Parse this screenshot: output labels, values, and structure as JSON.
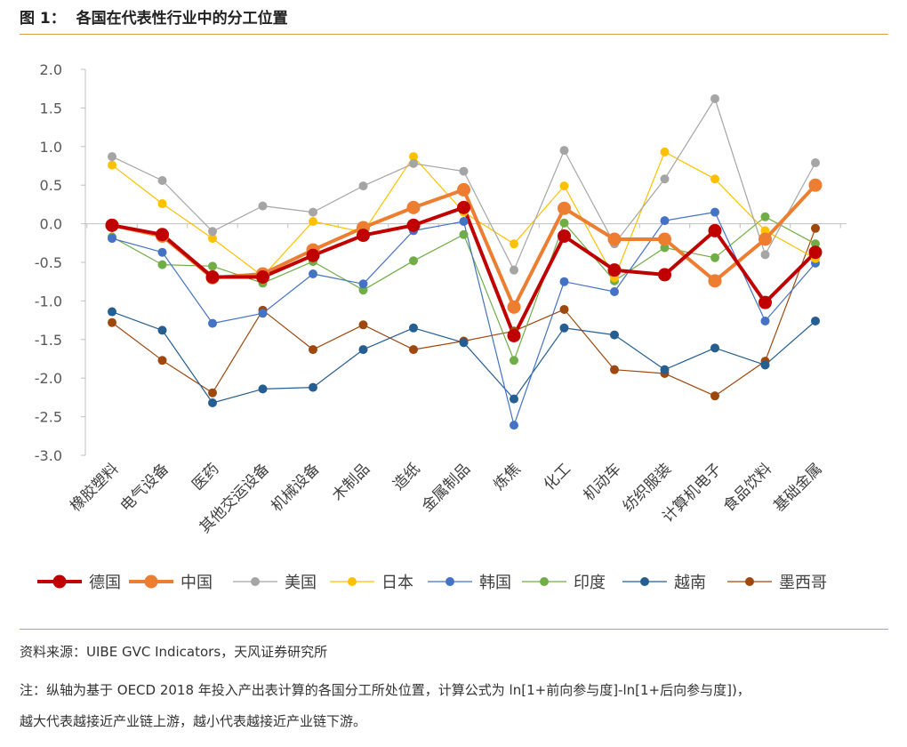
{
  "figure": {
    "title": "图 1：  各国在代表性行业中的分工位置"
  },
  "notes": {
    "source": "资料来源：UIBE GVC Indicators，天风证券研究所",
    "line1": "注：纵轴为基于 OECD 2018 年投入产出表计算的各国分工所处位置，计算公式为 ln[1+前向参与度]-ln[1+后向参与度])，",
    "line2": "越大代表越接近产业链上游，越小代表越接近产业链下游。"
  },
  "chart_data": {
    "type": "line",
    "title": "",
    "xlabel": "",
    "ylabel": "",
    "ylim": [
      -3.0,
      2.0
    ],
    "y_ticks": [
      2.0,
      1.5,
      1.0,
      0.5,
      0.0,
      -0.5,
      -1.0,
      -1.5,
      -2.0,
      -2.5,
      -3.0
    ],
    "y_tick_labels": [
      "2.0",
      "1.5",
      "1.0",
      "0.5",
      "0.0",
      "-0.5",
      "-1.0",
      "-1.5",
      "-2.0",
      "-2.5",
      "-3.0"
    ],
    "grid": false,
    "legend": "bottom",
    "categories": [
      "橡胶塑料",
      "电气设备",
      "医药",
      "其他交运设备",
      "机械设备",
      "木制品",
      "造纸",
      "金属制品",
      "炼焦",
      "化工",
      "机动车",
      "纺织服装",
      "计算机电子",
      "食品饮料",
      "基础金属"
    ],
    "series": [
      {
        "name": "德国",
        "color": "#C00000",
        "emphasis": "bold",
        "values": [
          -0.02,
          -0.14,
          -0.69,
          -0.69,
          -0.41,
          -0.15,
          -0.02,
          0.21,
          -1.45,
          -0.16,
          -0.6,
          -0.66,
          -0.09,
          -1.02,
          -0.37
        ]
      },
      {
        "name": "中国",
        "color": "#ED7D31",
        "emphasis": "bold",
        "values": [
          -0.02,
          -0.16,
          -0.7,
          -0.65,
          -0.34,
          -0.05,
          0.21,
          0.44,
          -1.08,
          0.2,
          -0.2,
          -0.2,
          -0.74,
          -0.2,
          0.5
        ]
      },
      {
        "name": "美国",
        "color": "#A5A5A5",
        "emphasis": "thin",
        "values": [
          0.87,
          0.56,
          -0.1,
          0.23,
          0.15,
          0.49,
          0.78,
          0.68,
          -0.6,
          0.95,
          -0.26,
          0.58,
          1.62,
          -0.4,
          0.79
        ]
      },
      {
        "name": "日本",
        "color": "#FFC000",
        "emphasis": "thin",
        "values": [
          0.76,
          0.26,
          -0.19,
          -0.68,
          0.03,
          -0.11,
          0.87,
          0.15,
          -0.26,
          0.49,
          -0.7,
          0.93,
          0.58,
          -0.09,
          -0.45
        ]
      },
      {
        "name": "韩国",
        "color": "#4472C4",
        "emphasis": "thin",
        "values": [
          -0.19,
          -0.37,
          -1.29,
          -1.16,
          -0.65,
          -0.78,
          -0.09,
          0.03,
          -2.61,
          -0.75,
          -0.88,
          0.04,
          0.15,
          -1.26,
          -0.51
        ]
      },
      {
        "name": "印度",
        "color": "#70AD47",
        "emphasis": "thin",
        "values": [
          -0.17,
          -0.53,
          -0.55,
          -0.77,
          -0.49,
          -0.86,
          -0.48,
          -0.14,
          -1.77,
          0.01,
          -0.74,
          -0.31,
          -0.44,
          0.09,
          -0.26
        ]
      },
      {
        "name": "越南",
        "color": "#255E91",
        "emphasis": "thin",
        "values": [
          -1.14,
          -1.38,
          -2.32,
          -2.14,
          -2.12,
          -1.63,
          -1.35,
          -1.54,
          -2.27,
          -1.35,
          -1.44,
          -1.89,
          -1.61,
          -1.83,
          -1.26
        ]
      },
      {
        "name": "墨西哥",
        "color": "#9E480E",
        "emphasis": "thin",
        "values": [
          -1.28,
          -1.77,
          -2.19,
          -1.12,
          -1.63,
          -1.31,
          -1.63,
          -1.52,
          -1.39,
          -1.11,
          -1.89,
          -1.94,
          -2.23,
          -1.78,
          -0.06
        ]
      }
    ]
  }
}
